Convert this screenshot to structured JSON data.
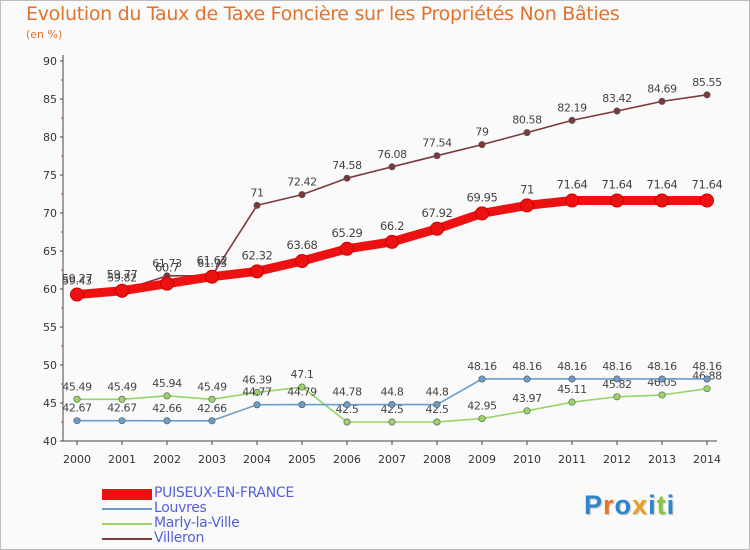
{
  "chart_data": {
    "type": "line",
    "title": "Evolution du Taux de Taxe Foncière sur les Propriétés Non Bâties",
    "ylabel": "(en %)",
    "xlabel": "",
    "x": [
      "2000",
      "2001",
      "2002",
      "2003",
      "2004",
      "2005",
      "2006",
      "2007",
      "2008",
      "2009",
      "2010",
      "2011",
      "2012",
      "2013",
      "2014"
    ],
    "ylim": [
      40,
      90
    ],
    "yticks": [
      "40",
      "45",
      "50",
      "55",
      "60",
      "65",
      "70",
      "75",
      "80",
      "85",
      "90"
    ],
    "grid": false,
    "legend_position": "bottom-left",
    "series": [
      {
        "name": "PUISEUX-EN-FRANCE",
        "color": "#ee1111",
        "values": [
          59.27,
          59.77,
          60.7,
          61.62,
          62.32,
          63.68,
          65.29,
          66.2,
          67.92,
          69.95,
          71,
          71.64,
          71.64,
          71.64,
          71.64
        ],
        "labels": [
          "59.27",
          "59.77",
          "60.7",
          "61.62",
          "62.32",
          "63.68",
          "65.29",
          "66.2",
          "67.92",
          "69.95",
          "71",
          "71.64",
          "71.64",
          "71.64",
          "71.64"
        ]
      },
      {
        "name": "Louvres",
        "color": "#6a9ccc",
        "values": [
          42.67,
          42.67,
          42.66,
          42.66,
          44.77,
          44.79,
          44.78,
          44.8,
          44.8,
          48.16,
          48.16,
          48.16,
          48.16,
          48.16,
          48.16
        ],
        "labels": [
          "42.67",
          "42.67",
          "42.66",
          "42.66",
          "44.77",
          "44.79",
          "44.78",
          "44.8",
          "44.8",
          "48.16",
          "48.16",
          "48.16",
          "48.16",
          "48.16",
          "48.16"
        ]
      },
      {
        "name": "Marly-la-Ville",
        "color": "#99d466",
        "values": [
          45.49,
          45.49,
          45.94,
          45.49,
          46.39,
          47.1,
          42.5,
          42.5,
          42.5,
          42.95,
          43.97,
          45.11,
          45.82,
          46.05,
          46.88
        ],
        "labels": [
          "45.49",
          "45.49",
          "45.94",
          "45.49",
          "46.39",
          "47.1",
          "42.5",
          "42.5",
          "42.5",
          "42.95",
          "43.97",
          "45.11",
          "45.82",
          "46.05",
          "46.88"
        ]
      },
      {
        "name": "Villeron",
        "color": "#7a3a3c",
        "values": [
          59.43,
          59.82,
          61.73,
          61.73,
          71,
          72.42,
          74.58,
          76.08,
          77.54,
          79,
          80.58,
          82.19,
          83.42,
          84.69,
          85.55
        ],
        "labels": [
          "59.43",
          "59.82",
          "61.73",
          "61.73",
          "71",
          "72.42",
          "74.58",
          "76.08",
          "77.54",
          "79",
          "80.58",
          "82.19",
          "83.42",
          "84.69",
          "85.55"
        ]
      }
    ]
  },
  "brand": {
    "letters": [
      "P",
      "r",
      "o",
      "x",
      "i",
      "t",
      "i"
    ],
    "colors": [
      "#2e86c9",
      "#e8732a",
      "#2e86c9",
      "#e8a020",
      "#2e86c9",
      "#8ac43f",
      "#2e86c9"
    ]
  }
}
